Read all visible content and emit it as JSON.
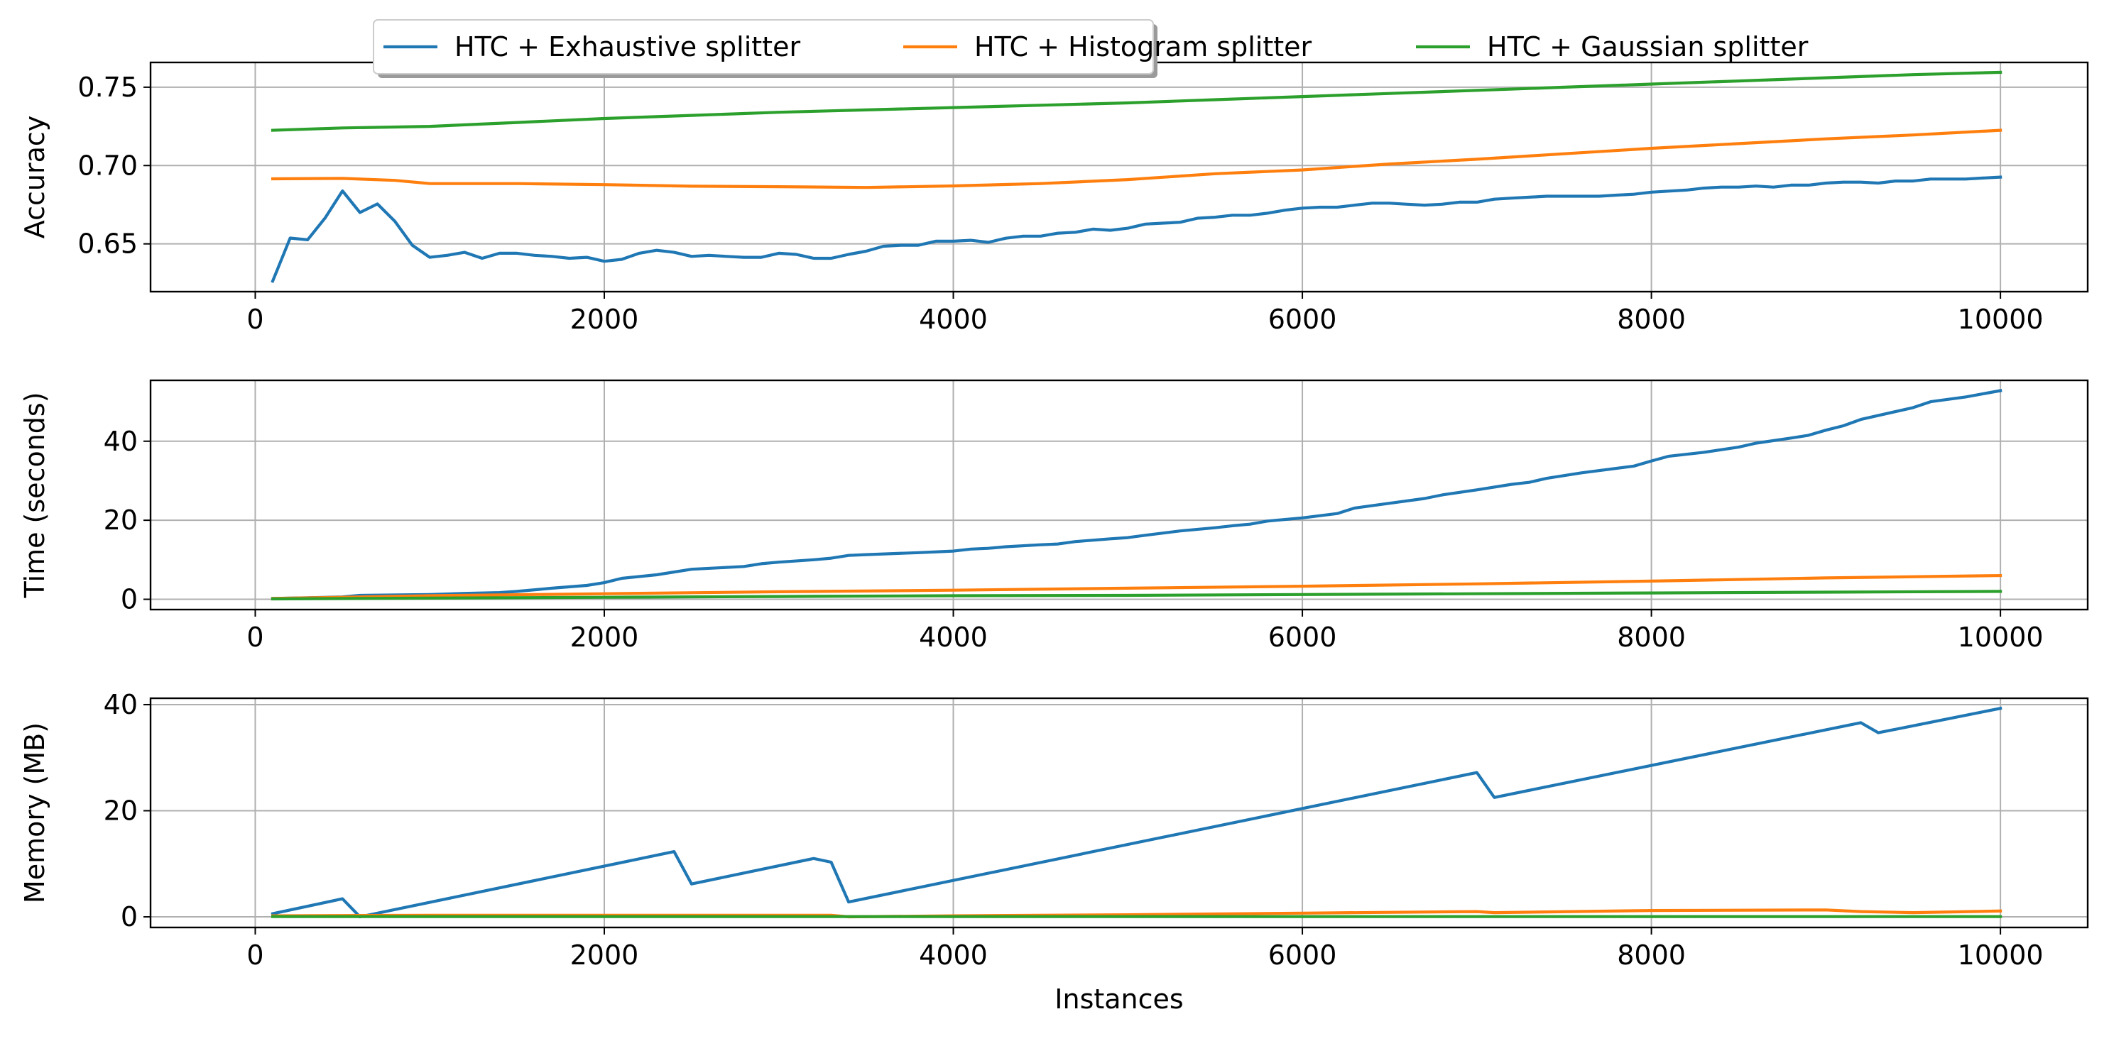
{
  "chart_data": [
    {
      "type": "line",
      "ylabel": "Accuracy",
      "xlabel": "",
      "xlim": [
        -600,
        10500
      ],
      "ylim": [
        0.6195,
        0.7658
      ],
      "xticks": [
        0,
        2000,
        4000,
        6000,
        8000,
        10000
      ],
      "xtick_labels": [
        "0",
        "2000",
        "4000",
        "6000",
        "8000",
        "10000"
      ],
      "yticks": [
        0.65,
        0.7,
        0.75
      ],
      "ytick_labels": [
        "0.65",
        "0.70",
        "0.75"
      ],
      "grid": true,
      "legend": "top-center",
      "series": [
        {
          "name": "HTC + Exhaustive splitter",
          "color": "#1f77b4",
          "x": [
            100,
            200,
            300,
            400,
            500,
            600,
            700,
            800,
            900,
            1000,
            1100,
            1200,
            1300,
            1400,
            1500,
            1600,
            1700,
            1800,
            1900,
            2000,
            2100,
            2200,
            2300,
            2400,
            2500,
            2600,
            2700,
            2800,
            2900,
            3000,
            3100,
            3200,
            3300,
            3400,
            3500,
            3600,
            3700,
            3800,
            3900,
            4000,
            4100,
            4200,
            4300,
            4400,
            4500,
            4600,
            4700,
            4800,
            4900,
            5000,
            5100,
            5200,
            5300,
            5400,
            5500,
            5600,
            5700,
            5800,
            5900,
            6000,
            6100,
            6200,
            6300,
            6400,
            6500,
            6600,
            6700,
            6800,
            6900,
            7000,
            7100,
            7200,
            7300,
            7400,
            7500,
            7600,
            7700,
            7800,
            7900,
            8000,
            8100,
            8200,
            8300,
            8400,
            8500,
            8600,
            8700,
            8800,
            8900,
            9000,
            9100,
            9200,
            9300,
            9400,
            9500,
            9600,
            9700,
            9800,
            9900,
            10000
          ],
          "values": [
            0.6262,
            0.6537,
            0.6526,
            0.6665,
            0.6838,
            0.67,
            0.6755,
            0.6644,
            0.6491,
            0.6414,
            0.6427,
            0.6446,
            0.6408,
            0.644,
            0.644,
            0.6427,
            0.642,
            0.6408,
            0.6414,
            0.6389,
            0.6401,
            0.644,
            0.6459,
            0.6446,
            0.642,
            0.6427,
            0.642,
            0.6414,
            0.6414,
            0.644,
            0.6433,
            0.6408,
            0.6408,
            0.6433,
            0.6453,
            0.6485,
            0.6491,
            0.6491,
            0.6517,
            0.6517,
            0.6523,
            0.651,
            0.6536,
            0.6549,
            0.6549,
            0.6568,
            0.6574,
            0.6594,
            0.6587,
            0.66,
            0.6626,
            0.6632,
            0.6638,
            0.6664,
            0.667,
            0.6683,
            0.6683,
            0.6696,
            0.6715,
            0.6728,
            0.6734,
            0.6734,
            0.6747,
            0.676,
            0.676,
            0.6753,
            0.6747,
            0.6753,
            0.6766,
            0.6766,
            0.6785,
            0.6792,
            0.6798,
            0.6804,
            0.6804,
            0.6804,
            0.6804,
            0.6811,
            0.6817,
            0.683,
            0.6837,
            0.6843,
            0.6856,
            0.6862,
            0.6862,
            0.6869,
            0.6862,
            0.6875,
            0.6875,
            0.6888,
            0.6894,
            0.6894,
            0.6888,
            0.6901,
            0.6901,
            0.6914,
            0.6914,
            0.6914,
            0.692,
            0.6926
          ]
        },
        {
          "name": "HTC + Histogram splitter",
          "color": "#ff7f0e",
          "x": [
            100,
            500,
            800,
            1000,
            1500,
            2000,
            2500,
            3000,
            3500,
            4000,
            4500,
            5000,
            5500,
            6000,
            6500,
            7000,
            7500,
            8000,
            8500,
            9000,
            9500,
            10000
          ],
          "values": [
            0.6915,
            0.6918,
            0.6905,
            0.6885,
            0.6885,
            0.6878,
            0.6868,
            0.6865,
            0.686,
            0.687,
            0.6885,
            0.691,
            0.6948,
            0.6972,
            0.701,
            0.704,
            0.7075,
            0.711,
            0.714,
            0.717,
            0.7195,
            0.7225
          ]
        },
        {
          "name": "HTC + Gaussian splitter",
          "color": "#2ca02c",
          "x": [
            100,
            500,
            1000,
            1500,
            2000,
            2500,
            3000,
            3500,
            4000,
            4500,
            5000,
            5500,
            6000,
            6500,
            7000,
            7500,
            8000,
            8500,
            9000,
            9500,
            10000
          ],
          "values": [
            0.7225,
            0.724,
            0.725,
            0.7275,
            0.73,
            0.732,
            0.734,
            0.7355,
            0.737,
            0.7385,
            0.74,
            0.742,
            0.744,
            0.746,
            0.748,
            0.75,
            0.752,
            0.754,
            0.756,
            0.758,
            0.7595
          ]
        }
      ]
    },
    {
      "type": "line",
      "ylabel": "Time (seconds)",
      "xlabel": "",
      "xlim": [
        -600,
        10500
      ],
      "ylim": [
        -2.6,
        55.4
      ],
      "xticks": [
        0,
        2000,
        4000,
        6000,
        8000,
        10000
      ],
      "xtick_labels": [
        "0",
        "2000",
        "4000",
        "6000",
        "8000",
        "10000"
      ],
      "yticks": [
        0,
        20,
        40
      ],
      "ytick_labels": [
        "0",
        "20",
        "40"
      ],
      "grid": true,
      "series": [
        {
          "name": "HTC + Exhaustive splitter",
          "color": "#1f77b4",
          "x": [
            100,
            300,
            500,
            600,
            1000,
            1200,
            1400,
            1500,
            1700,
            1900,
            2000,
            2100,
            2300,
            2500,
            2800,
            2900,
            3000,
            3200,
            3300,
            3400,
            3500,
            3800,
            4000,
            4100,
            4200,
            4300,
            4500,
            4600,
            4700,
            4900,
            5000,
            5100,
            5300,
            5500,
            5600,
            5700,
            5800,
            6000,
            6200,
            6300,
            6500,
            6700,
            6800,
            7000,
            7200,
            7300,
            7400,
            7600,
            7900,
            8000,
            8100,
            8300,
            8500,
            8600,
            8800,
            8900,
            9000,
            9100,
            9200,
            9500,
            9600,
            9800,
            10000
          ],
          "values": [
            0.2,
            0.4,
            0.6,
            1.0,
            1.2,
            1.5,
            1.7,
            2.0,
            2.8,
            3.5,
            4.2,
            5.3,
            6.2,
            7.6,
            8.3,
            9.0,
            9.4,
            10.0,
            10.4,
            11.1,
            11.3,
            11.8,
            12.2,
            12.7,
            12.9,
            13.3,
            13.8,
            14.0,
            14.6,
            15.3,
            15.6,
            16.2,
            17.3,
            18.1,
            18.6,
            19.0,
            19.8,
            20.6,
            21.7,
            23.1,
            24.3,
            25.5,
            26.4,
            27.7,
            29.1,
            29.6,
            30.6,
            32.0,
            33.7,
            35.0,
            36.2,
            37.2,
            38.5,
            39.5,
            40.8,
            41.5,
            42.8,
            43.9,
            45.5,
            48.5,
            50.0,
            51.2,
            52.8
          ]
        },
        {
          "name": "HTC + Histogram splitter",
          "color": "#ff7f0e",
          "x": [
            100,
            1000,
            2000,
            3000,
            4000,
            5000,
            6000,
            7000,
            8000,
            9000,
            10000
          ],
          "values": [
            0.2,
            0.9,
            1.4,
            1.9,
            2.3,
            2.8,
            3.3,
            3.9,
            4.6,
            5.4,
            6.0
          ]
        },
        {
          "name": "HTC + Gaussian splitter",
          "color": "#2ca02c",
          "x": [
            100,
            1000,
            2000,
            3000,
            4000,
            5000,
            6000,
            7000,
            8000,
            9000,
            10000
          ],
          "values": [
            0.1,
            0.3,
            0.5,
            0.7,
            0.9,
            1.0,
            1.2,
            1.4,
            1.6,
            1.8,
            2.0
          ]
        }
      ]
    },
    {
      "type": "line",
      "ylabel": "Memory (MB)",
      "xlabel": "Instances",
      "xlim": [
        -600,
        10500
      ],
      "ylim": [
        -2.0,
        41.2
      ],
      "xticks": [
        0,
        2000,
        4000,
        6000,
        8000,
        10000
      ],
      "xtick_labels": [
        "0",
        "2000",
        "4000",
        "6000",
        "8000",
        "10000"
      ],
      "yticks": [
        0,
        20,
        40
      ],
      "ytick_labels": [
        "0",
        "20",
        "40"
      ],
      "grid": true,
      "series": [
        {
          "name": "HTC + Exhaustive splitter",
          "color": "#1f77b4",
          "x": [
            100,
            500,
            600,
            2400,
            2500,
            3200,
            3300,
            3400,
            7000,
            7100,
            9200,
            9300,
            10000
          ],
          "values": [
            0.6,
            3.4,
            0.0,
            12.3,
            6.2,
            11.0,
            10.3,
            2.8,
            27.2,
            22.5,
            36.6,
            34.7,
            39.3
          ]
        },
        {
          "name": "HTC + Histogram splitter",
          "color": "#ff7f0e",
          "x": [
            100,
            1000,
            2000,
            3000,
            3300,
            3400,
            4000,
            5000,
            6000,
            7000,
            7100,
            8000,
            9000,
            9200,
            9500,
            10000
          ],
          "values": [
            0.2,
            0.3,
            0.3,
            0.3,
            0.3,
            0.0,
            0.2,
            0.4,
            0.7,
            1.0,
            0.8,
            1.2,
            1.3,
            1.0,
            0.8,
            1.1
          ]
        },
        {
          "name": "HTC + Gaussian splitter",
          "color": "#2ca02c",
          "x": [
            100,
            2000,
            4000,
            6000,
            8000,
            10000
          ],
          "values": [
            0.05,
            0.05,
            0.05,
            0.05,
            0.05,
            0.05
          ]
        }
      ]
    }
  ]
}
